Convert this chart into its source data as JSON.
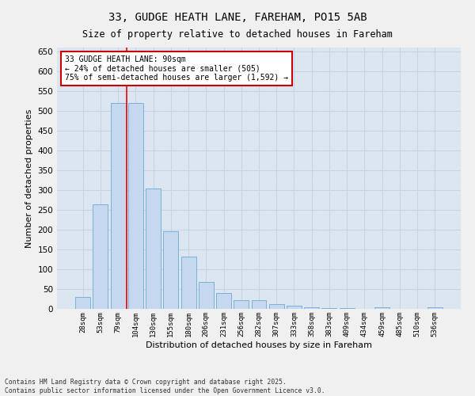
{
  "title": "33, GUDGE HEATH LANE, FAREHAM, PO15 5AB",
  "subtitle": "Size of property relative to detached houses in Fareham",
  "xlabel": "Distribution of detached houses by size in Fareham",
  "ylabel": "Number of detached properties",
  "categories": [
    "28sqm",
    "53sqm",
    "79sqm",
    "104sqm",
    "130sqm",
    "155sqm",
    "180sqm",
    "206sqm",
    "231sqm",
    "256sqm",
    "282sqm",
    "307sqm",
    "333sqm",
    "358sqm",
    "383sqm",
    "409sqm",
    "434sqm",
    "459sqm",
    "485sqm",
    "510sqm",
    "536sqm"
  ],
  "values": [
    30,
    265,
    520,
    520,
    305,
    197,
    133,
    68,
    40,
    22,
    22,
    13,
    8,
    5,
    3,
    3,
    1,
    5,
    1,
    1,
    5
  ],
  "bar_color": "#c5d8f0",
  "bar_edge_color": "#6aaad4",
  "grid_color": "#c8d4e4",
  "background_color": "#dce6f0",
  "fig_background": "#f0f0f0",
  "red_line_x": 2.5,
  "annotation_text": "33 GUDGE HEATH LANE: 90sqm\n← 24% of detached houses are smaller (505)\n75% of semi-detached houses are larger (1,592) →",
  "annotation_box_color": "#ffffff",
  "annotation_box_edge": "#cc0000",
  "ylim": [
    0,
    660
  ],
  "yticks": [
    0,
    50,
    100,
    150,
    200,
    250,
    300,
    350,
    400,
    450,
    500,
    550,
    600,
    650
  ],
  "footer_line1": "Contains HM Land Registry data © Crown copyright and database right 2025.",
  "footer_line2": "Contains public sector information licensed under the Open Government Licence v3.0."
}
